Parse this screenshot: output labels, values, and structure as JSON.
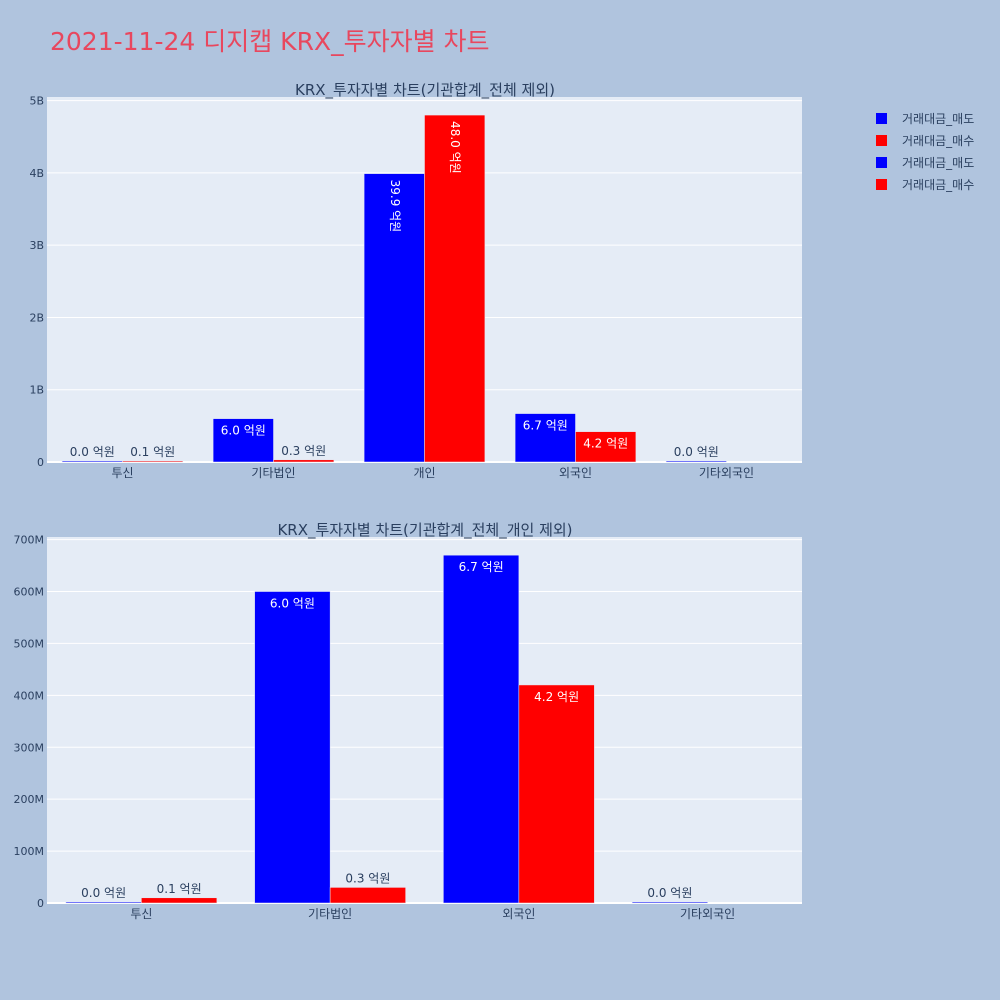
{
  "page": {
    "title": "2021-11-24 디지캡 KRX_투자자별 차트"
  },
  "colors": {
    "background": "#b0c4de",
    "plot_bg": "#e5ecf6",
    "sell": "#0000ff",
    "buy": "#ff0000",
    "title": "#e8475e",
    "text": "#2a3f5f"
  },
  "legend": [
    {
      "label": "거래대금_매도",
      "color": "#0000ff"
    },
    {
      "label": "거래대금_매수",
      "color": "#ff0000"
    },
    {
      "label": "거래대금_매도",
      "color": "#0000ff"
    },
    {
      "label": "거래대금_매수",
      "color": "#ff0000"
    }
  ],
  "chart_data": [
    {
      "type": "bar",
      "title": "KRX_투자자별 차트(기관합계_전체 제외)",
      "categories": [
        "투신",
        "기타법인",
        "개인",
        "외국인",
        "기타외국인"
      ],
      "series": [
        {
          "name": "거래대금_매도",
          "color": "#0000ff",
          "values": [
            0,
            600000000,
            3990000000,
            670000000,
            0
          ],
          "labels": [
            "0.0 억원",
            "6.0 억원",
            "39.9 억원",
            "6.7 억원",
            "0.0 억원"
          ]
        },
        {
          "name": "거래대금_매수",
          "color": "#ff0000",
          "values": [
            10000000,
            30000000,
            4800000000,
            420000000,
            null
          ],
          "labels": [
            "0.1 억원",
            "0.3 억원",
            "48.0 억원",
            "4.2 억원",
            ""
          ]
        }
      ],
      "ylim": [
        0,
        5050000000
      ],
      "yticks": [
        0,
        1000000000,
        2000000000,
        3000000000,
        4000000000,
        5000000000
      ],
      "ytick_labels": [
        "0",
        "1B",
        "2B",
        "3B",
        "4B",
        "5B"
      ]
    },
    {
      "type": "bar",
      "title": "KRX_투자자별 차트(기관합계_전체_개인 제외)",
      "categories": [
        "투신",
        "기타법인",
        "외국인",
        "기타외국인"
      ],
      "series": [
        {
          "name": "거래대금_매도",
          "color": "#0000ff",
          "values": [
            0,
            600000000,
            670000000,
            0
          ],
          "labels": [
            "0.0 억원",
            "6.0 억원",
            "6.7 억원",
            "0.0 억원"
          ]
        },
        {
          "name": "거래대금_매수",
          "color": "#ff0000",
          "values": [
            10000000,
            30000000,
            420000000,
            null
          ],
          "labels": [
            "0.1 억원",
            "0.3 억원",
            "4.2 억원",
            ""
          ]
        }
      ],
      "ylim": [
        0,
        705000000
      ],
      "yticks": [
        0,
        100000000,
        200000000,
        300000000,
        400000000,
        500000000,
        600000000,
        700000000
      ],
      "ytick_labels": [
        "0",
        "100M",
        "200M",
        "300M",
        "400M",
        "500M",
        "600M",
        "700M"
      ]
    }
  ]
}
